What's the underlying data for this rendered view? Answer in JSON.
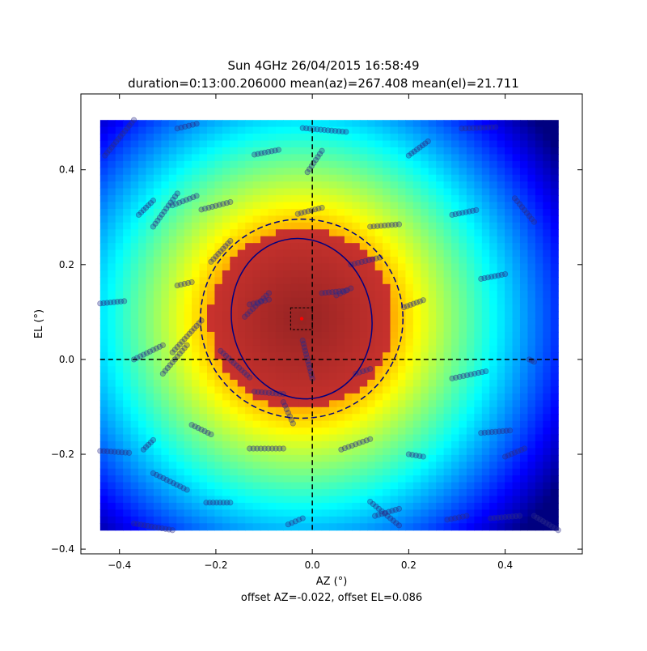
{
  "chart_data": {
    "type": "heatmap",
    "title_line1": "Sun 4GHz 26/04/2015 16:58:49",
    "title_line2": "duration=0:13:00.206000 mean(az)=267.408 mean(el)=21.711",
    "xlabel": "AZ (°)",
    "ylabel": "EL (°)",
    "footer": "offset AZ=-0.022, offset EL=0.086",
    "xlim": [
      -0.48,
      0.56
    ],
    "ylim": [
      -0.41,
      0.56
    ],
    "xticks": [
      -0.4,
      -0.2,
      0.0,
      0.2,
      0.4
    ],
    "xtick_labels": [
      "−0.4",
      "−0.2",
      "0.0",
      "0.2",
      "0.4"
    ],
    "yticks": [
      -0.4,
      -0.2,
      0.0,
      0.2,
      0.4
    ],
    "ytick_labels": [
      "−0.4",
      "−0.2",
      "0.0",
      "0.2",
      "0.4"
    ],
    "colormap": "jet",
    "heatmap": {
      "extent_x": [
        -0.44,
        0.51
      ],
      "extent_y": [
        -0.36,
        0.505
      ],
      "center_x": -0.022,
      "center_y": 0.086,
      "cells": 60
    },
    "offset_x": -0.022,
    "offset_y": 0.086,
    "fwhm_ellipse": {
      "cx": -0.022,
      "cy": 0.086,
      "rx": 0.145,
      "ry": 0.17,
      "angle": -12,
      "color": "#00007f"
    },
    "dashed_circle": {
      "cx": -0.022,
      "cy": 0.086,
      "r": 0.21,
      "color": "#00007f"
    },
    "crosshair": {
      "x": 0.0,
      "y": 0.0
    },
    "peak_box": {
      "x0": -0.045,
      "x1": 0.0,
      "y0": 0.063,
      "y1": 0.109
    },
    "peak_marker": {
      "x": -0.022,
      "y": 0.086,
      "color": "#ff0000"
    },
    "scan_point_color": "#2b2b8a",
    "scan_segments": [
      [
        -0.44,
        -0.193,
        -0.38,
        -0.197
      ],
      [
        -0.44,
        0.118,
        -0.39,
        0.123
      ],
      [
        -0.43,
        0.43,
        -0.37,
        0.505
      ],
      [
        -0.36,
        0.305,
        -0.33,
        0.335
      ],
      [
        -0.37,
        0.0,
        -0.31,
        0.03
      ],
      [
        -0.37,
        -0.346,
        -0.29,
        -0.36
      ],
      [
        -0.35,
        -0.19,
        -0.33,
        -0.17
      ],
      [
        -0.33,
        0.28,
        -0.28,
        0.35
      ],
      [
        -0.33,
        -0.24,
        -0.26,
        -0.275
      ],
      [
        -0.31,
        -0.03,
        -0.26,
        0.03
      ],
      [
        -0.28,
        0.487,
        -0.24,
        0.497
      ],
      [
        -0.25,
        -0.138,
        -0.21,
        -0.158
      ],
      [
        -0.29,
        0.015,
        -0.23,
        0.082
      ],
      [
        -0.29,
        0.325,
        -0.24,
        0.345
      ],
      [
        -0.28,
        0.156,
        -0.25,
        0.163
      ],
      [
        -0.12,
        -0.068,
        -0.06,
        -0.073
      ],
      [
        -0.22,
        -0.302,
        -0.17,
        -0.302
      ],
      [
        -0.23,
        0.316,
        -0.17,
        0.332
      ],
      [
        -0.21,
        0.206,
        -0.17,
        0.25
      ],
      [
        -0.19,
        0.018,
        -0.13,
        -0.038
      ],
      [
        -0.14,
        0.09,
        -0.09,
        0.14
      ],
      [
        -0.13,
        0.116,
        -0.09,
        0.126
      ],
      [
        -0.13,
        -0.188,
        -0.06,
        -0.188
      ],
      [
        -0.12,
        0.432,
        -0.07,
        0.442
      ],
      [
        -0.06,
        -0.09,
        -0.04,
        -0.135
      ],
      [
        -0.03,
        0.307,
        0.02,
        0.32
      ],
      [
        -0.05,
        -0.348,
        -0.02,
        -0.335
      ],
      [
        -0.02,
        0.488,
        0.07,
        0.48
      ],
      [
        -0.01,
        0.395,
        0.02,
        0.44
      ],
      [
        -0.02,
        0.04,
        0.0,
        -0.04
      ],
      [
        0.02,
        0.14,
        0.07,
        0.145
      ],
      [
        0.05,
        0.135,
        0.08,
        0.15
      ],
      [
        0.06,
        -0.19,
        0.12,
        -0.168
      ],
      [
        0.08,
        0.2,
        0.14,
        0.215
      ],
      [
        0.09,
        -0.03,
        0.12,
        -0.02
      ],
      [
        0.12,
        0.28,
        0.18,
        0.285
      ],
      [
        0.13,
        -0.33,
        0.18,
        -0.315
      ],
      [
        0.12,
        -0.3,
        0.18,
        -0.35
      ],
      [
        0.19,
        0.11,
        0.23,
        0.125
      ],
      [
        0.2,
        0.43,
        0.24,
        0.46
      ],
      [
        0.2,
        -0.2,
        0.23,
        -0.205
      ],
      [
        0.29,
        0.305,
        0.34,
        0.315
      ],
      [
        0.29,
        -0.04,
        0.36,
        -0.025
      ],
      [
        0.28,
        -0.338,
        0.32,
        -0.33
      ],
      [
        0.31,
        0.487,
        0.38,
        0.49
      ],
      [
        0.35,
        0.17,
        0.4,
        0.18
      ],
      [
        0.35,
        -0.155,
        0.41,
        -0.15
      ],
      [
        0.4,
        -0.205,
        0.44,
        -0.188
      ],
      [
        0.42,
        0.34,
        0.46,
        0.29
      ],
      [
        0.45,
        0.0,
        0.46,
        -0.005
      ],
      [
        0.46,
        -0.33,
        0.51,
        -0.36
      ],
      [
        0.37,
        -0.335,
        0.43,
        -0.33
      ]
    ]
  }
}
